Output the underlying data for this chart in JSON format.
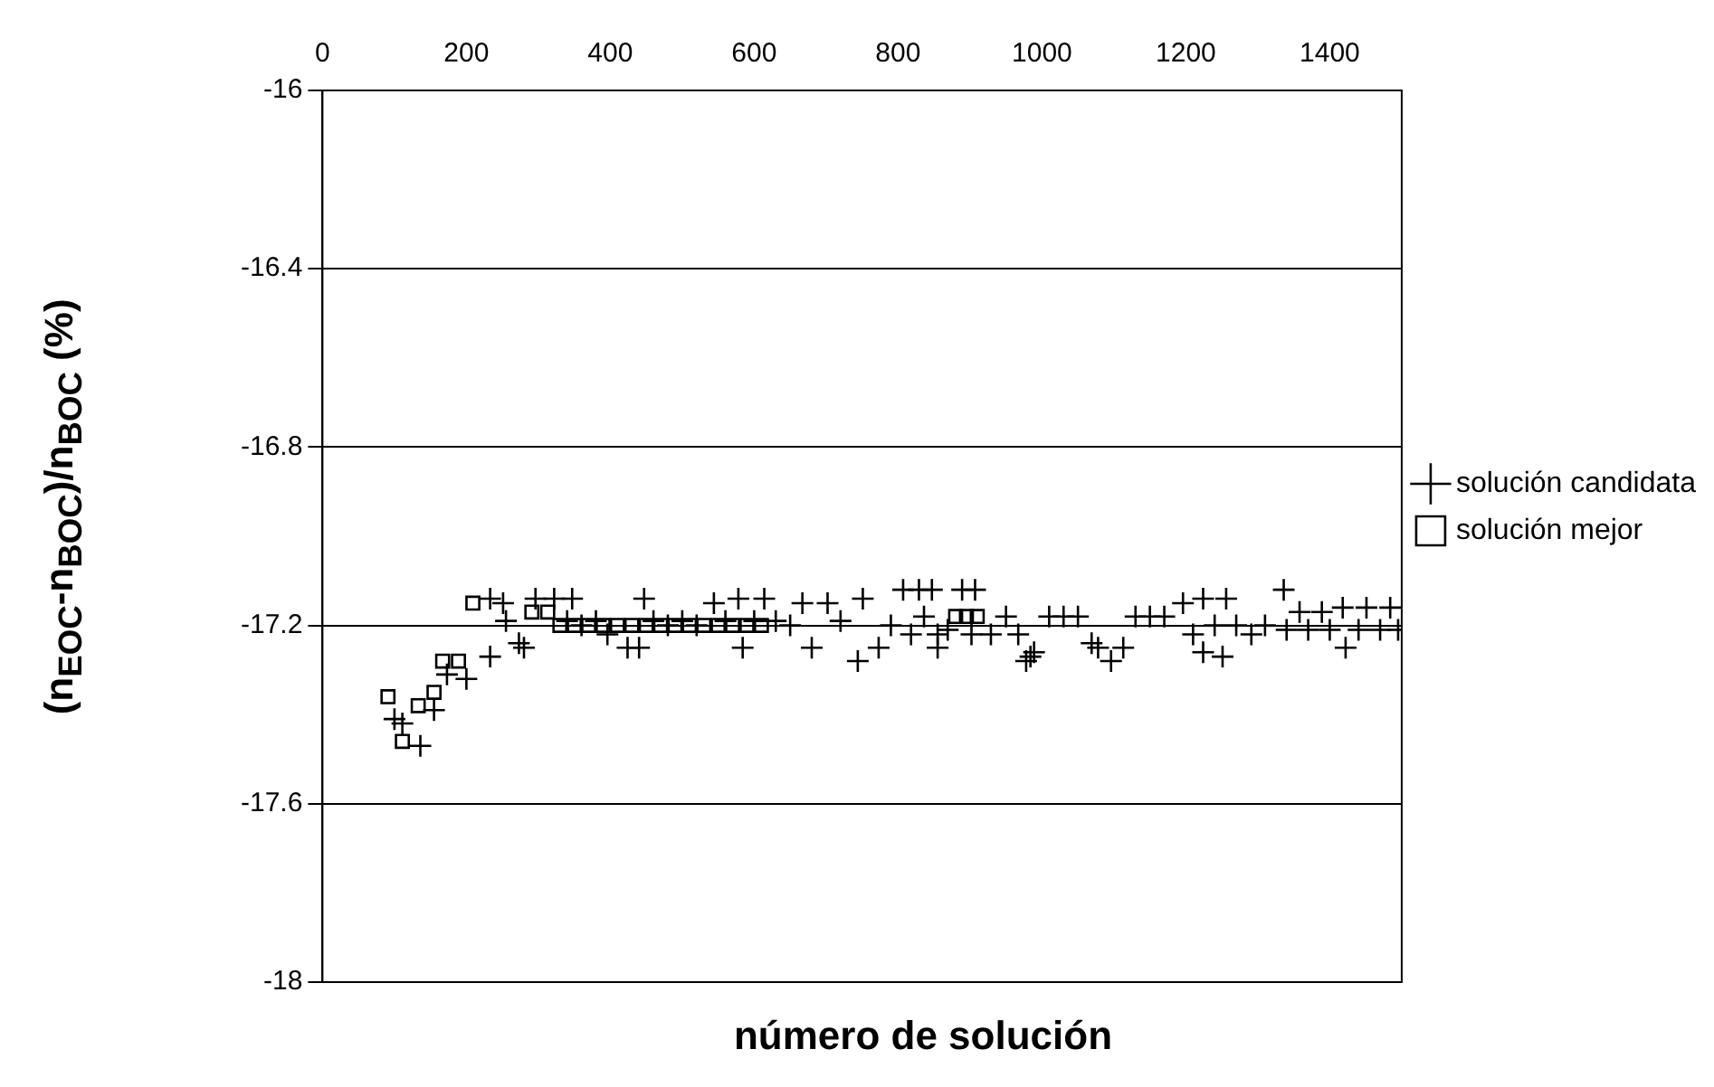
{
  "chart_data": {
    "type": "scatter",
    "xlabel": "número de solución",
    "ylabel": "(n$_{EOC}$-n$_{BOC}$)/n$_{BOC}$ (%)",
    "xlim": [
      0,
      1500
    ],
    "xticks": [
      0,
      200,
      400,
      600,
      800,
      1000,
      1200,
      1400
    ],
    "ylim": [
      -18,
      -16
    ],
    "yticks": [
      -18,
      -17.6,
      -17.2,
      -16.8,
      -16.4,
      -16
    ],
    "grid": "y",
    "legend": "right",
    "series": [
      {
        "name": "solución candidata",
        "color": "#000000",
        "marker": "cross",
        "x": [
          100,
          111,
          136,
          155,
          173,
          200,
          233,
          233,
          251,
          255,
          273,
          280,
          296,
          322,
          347,
          340,
          360,
          380,
          396,
          424,
          440,
          447,
          460,
          480,
          500,
          520,
          544,
          560,
          578,
          584,
          600,
          614,
          630,
          650,
          667,
          680,
          702,
          720,
          744,
          751,
          773,
          790,
          807,
          818,
          829,
          836,
          847,
          855,
          855,
          869,
          889,
          902,
          907,
          929,
          950,
          967,
          978,
          984,
          989,
          1010,
          1030,
          1050,
          1069,
          1078,
          1096,
          1113,
          1130,
          1150,
          1170,
          1196,
          1210,
          1224,
          1224,
          1240,
          1251,
          1256,
          1270,
          1291,
          1310,
          1336,
          1340,
          1358,
          1370,
          1389,
          1400,
          1418,
          1422,
          1440,
          1451,
          1470,
          1484,
          1495
        ],
        "values": [
          -17.41,
          -17.42,
          -17.47,
          -17.39,
          -17.31,
          -17.32,
          -17.27,
          -17.14,
          -17.15,
          -17.19,
          -17.24,
          -17.25,
          -17.14,
          -17.14,
          -17.14,
          -17.19,
          -17.2,
          -17.19,
          -17.22,
          -17.25,
          -17.25,
          -17.14,
          -17.19,
          -17.2,
          -17.19,
          -17.2,
          -17.15,
          -17.19,
          -17.14,
          -17.25,
          -17.19,
          -17.14,
          -17.19,
          -17.2,
          -17.15,
          -17.25,
          -17.15,
          -17.19,
          -17.28,
          -17.14,
          -17.25,
          -17.2,
          -17.12,
          -17.22,
          -17.12,
          -17.18,
          -17.12,
          -17.22,
          -17.25,
          -17.21,
          -17.12,
          -17.22,
          -17.12,
          -17.22,
          -17.18,
          -17.22,
          -17.28,
          -17.27,
          -17.26,
          -17.18,
          -17.18,
          -17.18,
          -17.24,
          -17.25,
          -17.28,
          -17.25,
          -17.18,
          -17.18,
          -17.18,
          -17.15,
          -17.22,
          -17.14,
          -17.26,
          -17.2,
          -17.27,
          -17.14,
          -17.2,
          -17.22,
          -17.2,
          -17.12,
          -17.21,
          -17.17,
          -17.21,
          -17.17,
          -17.21,
          -17.16,
          -17.25,
          -17.21,
          -17.16,
          -17.21,
          -17.16,
          -17.21
        ]
      },
      {
        "name": "solución mejor",
        "color": "#000000",
        "marker": "square",
        "x": [
          91,
          111,
          133,
          155,
          167,
          189,
          209,
          291,
          313,
          330,
          350,
          370,
          390,
          410,
          430,
          450,
          470,
          490,
          510,
          530,
          550,
          570,
          590,
          610,
          880,
          895,
          910
        ],
        "values": [
          -17.36,
          -17.46,
          -17.38,
          -17.35,
          -17.28,
          -17.28,
          -17.15,
          -17.17,
          -17.17,
          -17.2,
          -17.2,
          -17.2,
          -17.2,
          -17.2,
          -17.2,
          -17.2,
          -17.2,
          -17.2,
          -17.2,
          -17.2,
          -17.2,
          -17.2,
          -17.2,
          -17.2,
          -17.18,
          -17.18,
          -17.18
        ]
      }
    ]
  }
}
